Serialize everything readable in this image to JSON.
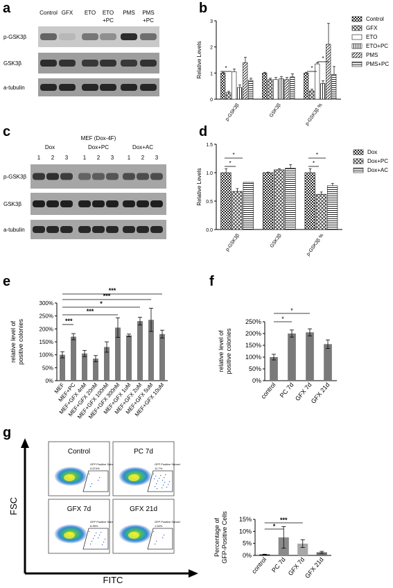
{
  "panels": {
    "a": {
      "letter": "a",
      "lanes": [
        "Control",
        "GFX",
        "ETO",
        "ETO\n+PC",
        "PMS",
        "PMS\n+PC"
      ],
      "lane_labels": [
        "Control",
        "GFX",
        "ETO",
        "ETO",
        "PMS",
        "PMS"
      ],
      "lane_sublabels": [
        "",
        "",
        "",
        "+PC",
        "",
        "+PC"
      ],
      "row_labels": [
        "p-GSK3β",
        "GSK3β",
        "a-tubulin"
      ]
    },
    "c": {
      "letter": "c",
      "header": "MEF (Dox-4F)",
      "groups": [
        "Dox",
        "Dox+PC",
        "Dox+AC"
      ],
      "lane_numbers": [
        "1",
        "2",
        "3",
        "1",
        "2",
        "3",
        "1",
        "2",
        "3"
      ],
      "row_labels": [
        "p-GSK3β",
        "GSK3β",
        "a-tubulin"
      ]
    },
    "b": {
      "letter": "b"
    },
    "d": {
      "letter": "d"
    },
    "e": {
      "letter": "e"
    },
    "f": {
      "letter": "f"
    },
    "g": {
      "letter": "g",
      "y_axis": "FSC",
      "x_axis": "FITC",
      "plots": [
        {
          "title": "Control",
          "subset": "GFP Positive Subset",
          "pct": "0.574%"
        },
        {
          "title": "PC 7d",
          "subset": "GFP Positive Subset",
          "pct": "12.7%"
        },
        {
          "title": "GFX 7d",
          "subset": "GFP Positive Subset",
          "pct": "6.95%"
        },
        {
          "title": "GFX 21d",
          "subset": "GFP Positive Subset",
          "pct": "1.54%"
        }
      ]
    }
  },
  "chart_data": [
    {
      "id": "b",
      "type": "bar",
      "ylabel": "Relative Levels",
      "ylim": [
        0,
        3
      ],
      "yticks": [
        "0",
        "1",
        "2",
        "3"
      ],
      "categories": [
        "p-GSK3β",
        "GSK3β",
        "p-GSK3β %"
      ],
      "legend_position": "top-right",
      "series": [
        {
          "name": "Control",
          "values": [
            1.0,
            1.0,
            1.0
          ],
          "errors": [
            0.03,
            0.03,
            0.03
          ]
        },
        {
          "name": "GFX",
          "values": [
            0.25,
            0.75,
            0.32
          ],
          "errors": [
            0.05,
            0.05,
            0.06
          ]
        },
        {
          "name": "ETO",
          "values": [
            1.05,
            0.75,
            1.35
          ],
          "errors": [
            0.1,
            0.08,
            0.05
          ]
        },
        {
          "name": "ETO+PC",
          "values": [
            0.45,
            0.78,
            0.6
          ],
          "errors": [
            0.1,
            0.08,
            0.1
          ]
        },
        {
          "name": "PMS",
          "values": [
            1.4,
            0.75,
            2.1
          ],
          "errors": [
            0.2,
            0.08,
            0.8
          ]
        },
        {
          "name": "PMS+PC",
          "values": [
            0.72,
            0.85,
            0.95
          ],
          "errors": [
            0.08,
            0.12,
            0.3
          ]
        }
      ],
      "annotations": [
        "*",
        "*",
        "*"
      ]
    },
    {
      "id": "d",
      "type": "bar",
      "ylabel": "Relative Levels",
      "ylim": [
        0.0,
        1.5
      ],
      "yticks": [
        "0.0",
        "0.5",
        "1.0",
        "1.5"
      ],
      "categories": [
        "p-GSK3β",
        "GSK3β",
        "p-GSK3β %"
      ],
      "legend_position": "top-right",
      "series": [
        {
          "name": "Dox",
          "values": [
            1.0,
            1.0,
            1.0
          ],
          "errors": [
            0.07,
            0.01,
            0.07
          ]
        },
        {
          "name": "Dox+PC",
          "values": [
            0.67,
            1.05,
            0.62
          ],
          "errors": [
            0.05,
            0.02,
            0.04
          ]
        },
        {
          "name": "Dox+AC",
          "values": [
            0.83,
            1.08,
            0.77
          ],
          "errors": [
            0.0,
            0.06,
            0.04
          ]
        }
      ],
      "annotations": [
        "*",
        "*",
        "*",
        "*"
      ]
    },
    {
      "id": "e",
      "type": "bar",
      "ylabel": "relative level of\npositive colonies",
      "ylabel_lines": [
        "relative level of",
        "positive colonies"
      ],
      "ylim": [
        0,
        300
      ],
      "yticks": [
        "0%",
        "50%",
        "100%",
        "150%",
        "200%",
        "250%",
        "300%"
      ],
      "categories": [
        "MEF",
        "MEF+PC",
        "MEF+GFX 4nM",
        "MEF+GFX 20nM",
        "MEF+GFX 100nM",
        "MEF+GFX 300nM",
        "MEF+GFX 1uM",
        "MEF+GFX 2uM",
        "MEF+GFX 5uM",
        "MEF+GFX 10uM"
      ],
      "values": [
        100,
        170,
        105,
        85,
        130,
        205,
        175,
        230,
        235,
        180
      ],
      "errors": [
        12,
        12,
        12,
        12,
        20,
        38,
        5,
        15,
        45,
        15
      ],
      "annotations": [
        "***",
        "***",
        "*",
        "***",
        "***"
      ]
    },
    {
      "id": "f",
      "type": "bar",
      "ylabel": "relative level of\npositive colonies",
      "ylabel_lines": [
        "relative level of",
        "positive colonies"
      ],
      "ylim": [
        0,
        250
      ],
      "yticks": [
        "0%",
        "50%",
        "100%",
        "150%",
        "200%",
        "250%"
      ],
      "categories": [
        "control",
        "PC 7d",
        "GFX 7d",
        "GFX 21d"
      ],
      "values": [
        100,
        200,
        205,
        155
      ],
      "errors": [
        12,
        15,
        15,
        18
      ],
      "annotations": [
        "*",
        "*"
      ]
    },
    {
      "id": "g",
      "type": "bar",
      "ylabel": "Percentage of\nGFP-Positive Cells",
      "ylabel_lines": [
        "Percentage of",
        "GFP-Positive Cells"
      ],
      "ylim": [
        0,
        15
      ],
      "yticks": [
        "0%",
        "5%",
        "10%",
        "15%"
      ],
      "categories": [
        "control",
        "PC 7d",
        "GFX 7d",
        "GFX 21d"
      ],
      "values": [
        0.4,
        7.5,
        4.9,
        1.3
      ],
      "errors": [
        0.1,
        4.5,
        1.6,
        0.4
      ],
      "annotations": [
        "*",
        "***"
      ]
    }
  ]
}
